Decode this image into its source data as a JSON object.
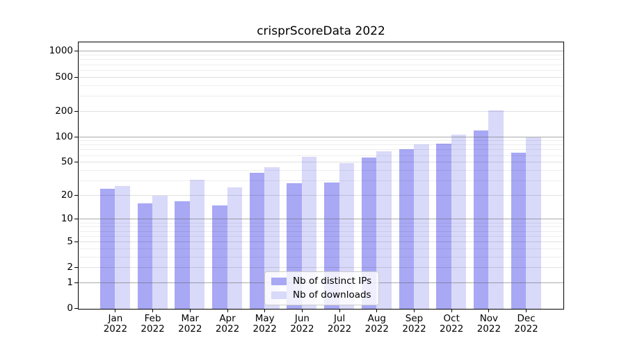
{
  "title": "crisprScoreData 2022",
  "colors": {
    "ips": "#a8a8f5",
    "downloads": "#d9d9fa",
    "grid_major": "#9a9a9a",
    "grid_mid": "#e2e2e2",
    "grid_minor": "#efefef",
    "spine": "#000000",
    "text": "#000000"
  },
  "legend": {
    "items": [
      {
        "label": "Nb of distinct IPs",
        "series": "ips"
      },
      {
        "label": "Nb of downloads",
        "series": "downloads"
      }
    ]
  },
  "y_axis": {
    "scale": "log10(1+value)",
    "tick_labels": [
      "1000",
      "500",
      "200",
      "100",
      "50",
      "20",
      "10",
      "5",
      "2",
      "1",
      "0"
    ],
    "tick_values": [
      1000,
      500,
      200,
      100,
      50,
      20,
      10,
      5,
      2,
      1,
      0
    ],
    "mid_gridline_values": [
      2,
      5,
      20,
      50,
      200,
      500
    ],
    "major_gridline_values": [
      1,
      10,
      100,
      1000
    ],
    "minor_gridline_values": [
      3,
      4,
      6,
      7,
      8,
      9,
      30,
      40,
      60,
      70,
      80,
      90,
      300,
      400,
      600,
      700,
      800,
      900
    ]
  },
  "x_axis": {
    "tick_labels": [
      [
        "Jan",
        "2022"
      ],
      [
        "Feb",
        "2022"
      ],
      [
        "Mar",
        "2022"
      ],
      [
        "Apr",
        "2022"
      ],
      [
        "May",
        "2022"
      ],
      [
        "Jun",
        "2022"
      ],
      [
        "Jul",
        "2022"
      ],
      [
        "Aug",
        "2022"
      ],
      [
        "Sep",
        "2022"
      ],
      [
        "Oct",
        "2022"
      ],
      [
        "Nov",
        "2022"
      ],
      [
        "Dec",
        "2022"
      ]
    ]
  },
  "chart_data": {
    "type": "bar",
    "title": "crisprScoreData 2022",
    "xlabel": "",
    "ylabel": "",
    "categories": [
      "Jan 2022",
      "Feb 2022",
      "Mar 2022",
      "Apr 2022",
      "May 2022",
      "Jun 2022",
      "Jul 2022",
      "Aug 2022",
      "Sep 2022",
      "Oct 2022",
      "Nov 2022",
      "Dec 2022"
    ],
    "series": [
      {
        "name": "Nb of distinct IPs",
        "color_key": "ips",
        "values": [
          24,
          16,
          17,
          15,
          38,
          28,
          29,
          57,
          72,
          84,
          120,
          66
        ]
      },
      {
        "name": "Nb of downloads",
        "color_key": "downloads",
        "values": [
          26,
          20,
          31,
          25,
          44,
          58,
          49,
          68,
          82,
          107,
          206,
          100
        ]
      }
    ],
    "ylim": [
      0,
      1000
    ],
    "yscale": "log1p",
    "grid": true,
    "legend_position": "inside lower-center"
  }
}
